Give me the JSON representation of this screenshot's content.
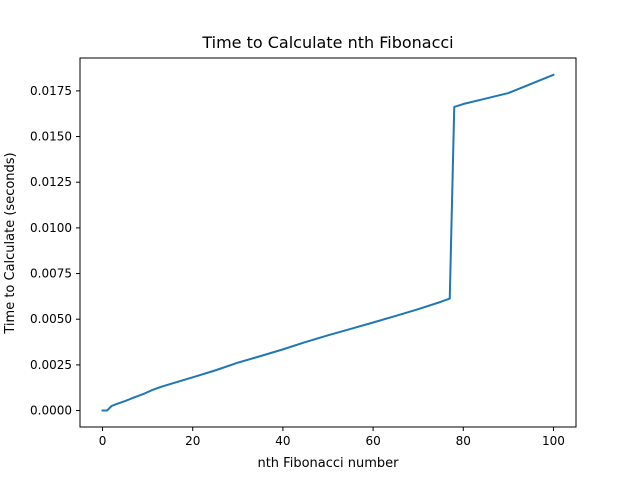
{
  "chart_data": {
    "type": "line",
    "title": "Time to Calculate nth Fibonacci",
    "xlabel": "nth Fibonacci number",
    "ylabel": "Time to Calculate (seconds)",
    "xlim": [
      -5,
      105
    ],
    "ylim": [
      -0.0009,
      0.0193
    ],
    "xticks": [
      0,
      20,
      40,
      60,
      80,
      100
    ],
    "xtick_labels": [
      "0",
      "20",
      "40",
      "60",
      "80",
      "100"
    ],
    "yticks": [
      0.0,
      0.0025,
      0.005,
      0.0075,
      0.01,
      0.0125,
      0.015,
      0.0175
    ],
    "ytick_labels": [
      "0.0000",
      "0.0025",
      "0.0050",
      "0.0075",
      "0.0100",
      "0.0125",
      "0.0150",
      "0.0175"
    ],
    "grid": false,
    "series": [
      {
        "color": "#1f77b4",
        "x": [
          0,
          1,
          2,
          3,
          5,
          7,
          9,
          11,
          13,
          15,
          20,
          25,
          30,
          35,
          40,
          45,
          50,
          55,
          60,
          65,
          70,
          75,
          77,
          78,
          80,
          85,
          90,
          94,
          95,
          100
        ],
        "y": [
          0.0,
          0.0,
          0.00025,
          0.00035,
          0.00052,
          0.00072,
          0.0009,
          0.00112,
          0.0013,
          0.00145,
          0.00182,
          0.0022,
          0.00262,
          0.00298,
          0.00335,
          0.00375,
          0.00412,
          0.00447,
          0.00482,
          0.00518,
          0.00555,
          0.00595,
          0.00613,
          0.01662,
          0.01678,
          0.01708,
          0.01738,
          0.01778,
          0.01788,
          0.01838
        ]
      }
    ]
  }
}
